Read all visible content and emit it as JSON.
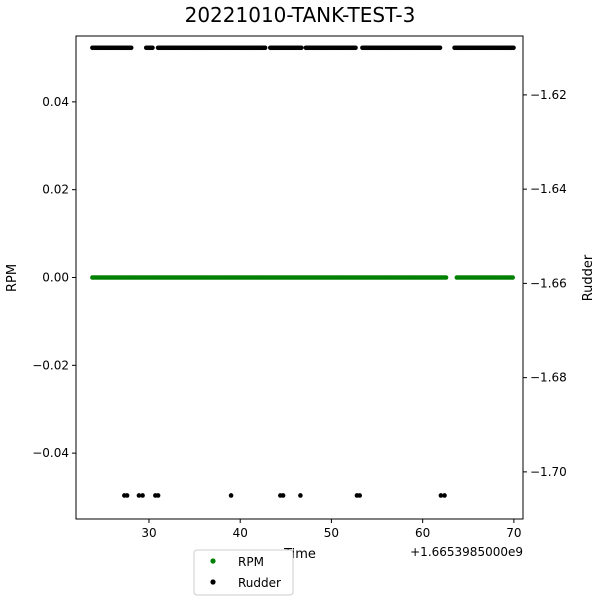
{
  "chart_data": {
    "type": "scatter",
    "title": "20221010-TANK-TEST-3",
    "xlabel": "Time",
    "ylabel_left": "RPM",
    "ylabel_right": "Rudder",
    "x_offset_label": "+1.6653985000e9",
    "xlim": [
      22,
      71
    ],
    "ylim_left": [
      -0.055,
      0.055
    ],
    "ylim_right": [
      -1.71,
      -1.6075
    ],
    "x_ticks": [
      30,
      40,
      50,
      60,
      70
    ],
    "x_tick_labels": [
      "30",
      "40",
      "50",
      "60",
      "70"
    ],
    "y_left_ticks": [
      -0.04,
      -0.02,
      0.0,
      0.02,
      0.04
    ],
    "y_left_tick_labels": [
      "−0.04",
      "−0.02",
      "0.00",
      "0.02",
      "0.04"
    ],
    "y_right_ticks": [
      -1.7,
      -1.68,
      -1.66,
      -1.64,
      -1.62
    ],
    "y_right_tick_labels": [
      "−1.70",
      "−1.68",
      "−1.66",
      "−1.64",
      "−1.62"
    ],
    "grid": false,
    "legend_position": "bottom-center",
    "series": [
      {
        "name": "RPM",
        "color": "#008000",
        "axis": "left",
        "x_range": [
          23.8,
          70.0
        ],
        "gaps": [
          [
            62.6,
            63.6
          ]
        ],
        "y": 0.0
      },
      {
        "name": "Rudder",
        "color": "#000000",
        "axis": "right",
        "high_value": -1.61,
        "low_value": -1.705,
        "high_segments": [
          [
            23.8,
            28.2
          ],
          [
            29.7,
            30.4
          ],
          [
            31.0,
            42.8
          ],
          [
            43.3,
            46.8
          ],
          [
            47.2,
            52.8
          ],
          [
            53.4,
            62.0
          ],
          [
            63.5,
            70.0
          ]
        ],
        "low_points": [
          27.3,
          27.6,
          28.9,
          29.3,
          30.7,
          31.0,
          39.0,
          44.4,
          44.7,
          46.6,
          52.8,
          53.1,
          62.0,
          62.4
        ]
      }
    ]
  }
}
